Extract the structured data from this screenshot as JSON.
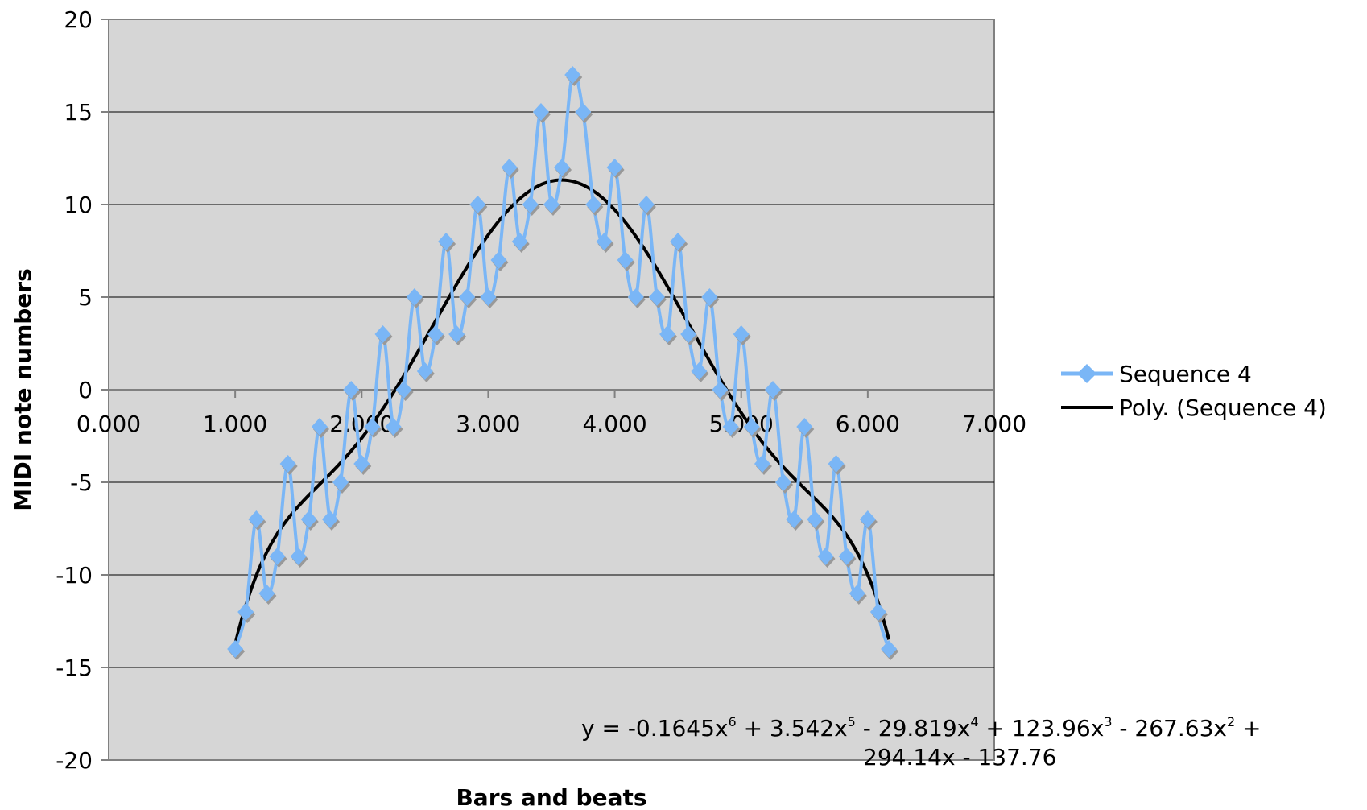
{
  "chart_data": {
    "type": "line",
    "title": "",
    "xlabel": "Bars and beats",
    "ylabel": "MIDI note numbers",
    "xlim": [
      0,
      7
    ],
    "ylim": [
      -20,
      20
    ],
    "x_ticks": [
      "0.000",
      "1.000",
      "2.000",
      "3.000",
      "4.000",
      "5.000",
      "6.000",
      "7.000"
    ],
    "y_ticks": [
      "20",
      "15",
      "10",
      "5",
      "0",
      "-5",
      "-10",
      "-15",
      "-20"
    ],
    "grid": "horizontal",
    "plot_background": "#d6d6d6",
    "legend_position": "right",
    "series": [
      {
        "name": "Sequence 4",
        "color": "#7ab6f6",
        "marker": "diamond",
        "x": [
          1.0,
          1.083,
          1.167,
          1.25,
          1.333,
          1.417,
          1.5,
          1.583,
          1.667,
          1.75,
          1.833,
          1.917,
          2.0,
          2.083,
          2.167,
          2.25,
          2.333,
          2.417,
          2.5,
          2.583,
          2.667,
          2.75,
          2.833,
          2.917,
          3.0,
          3.083,
          3.167,
          3.25,
          3.333,
          3.417,
          3.5,
          3.583,
          3.667,
          3.75,
          3.833,
          3.917,
          4.0,
          4.083,
          4.167,
          4.25,
          4.333,
          4.417,
          4.5,
          4.583,
          4.667,
          4.75,
          4.833,
          4.917,
          5.0,
          5.083,
          5.167,
          5.25,
          5.333,
          5.417,
          5.5,
          5.583,
          5.667,
          5.75,
          5.833,
          5.917,
          6.0,
          6.083,
          6.167
        ],
        "y": [
          -14,
          -12,
          -7,
          -11,
          -9,
          -4,
          -9,
          -7,
          -2,
          -7,
          -5,
          0,
          -4,
          -2,
          3,
          -2,
          0,
          5,
          1,
          3,
          8,
          3,
          5,
          10,
          5,
          7,
          12,
          8,
          10,
          15,
          10,
          12,
          17,
          15,
          10,
          8,
          12,
          7,
          5,
          10,
          5,
          3,
          8,
          3,
          1,
          5,
          0,
          -2,
          3,
          -2,
          -4,
          0,
          -5,
          -7,
          -2,
          -7,
          -9,
          -4,
          -9,
          -11,
          -7,
          -12,
          -14
        ]
      },
      {
        "name": "Poly. (Sequence 4)",
        "color": "#000000",
        "type": "trendline",
        "coefficients_desc": [
          -0.1645,
          3.542,
          -29.819,
          123.96,
          -267.63,
          294.14,
          -137.76
        ],
        "x_range": [
          1.0,
          6.167
        ]
      }
    ],
    "equation": {
      "line1": [
        "y = -0.1645x",
        "6",
        " + 3.542x",
        "5",
        " - 29.819x",
        "4",
        " + 123.96x",
        "3",
        " - 267.63x",
        "2",
        " +"
      ],
      "line2": "294.14x - 137.76"
    }
  }
}
